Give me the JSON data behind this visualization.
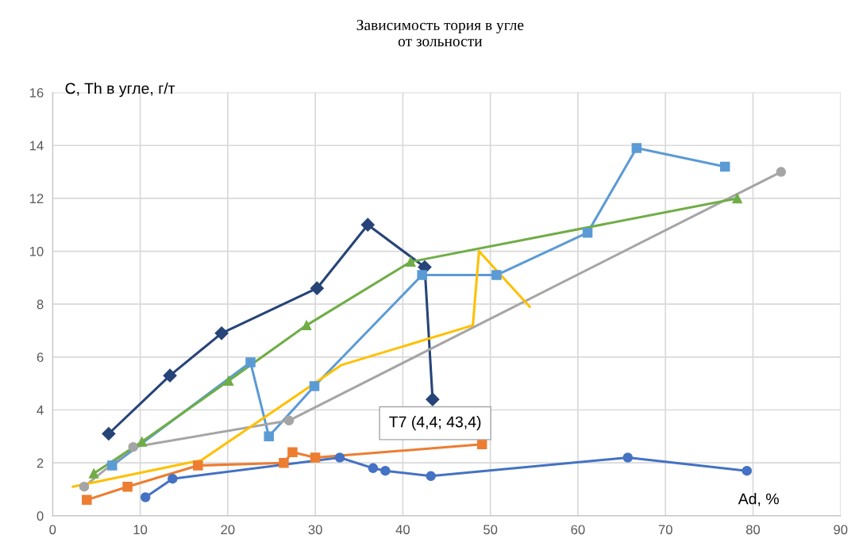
{
  "chart_data": {
    "type": "line",
    "title": "Зависимость тория в угле\nот зольности",
    "xlabel": "Ad, %",
    "ylabel": "С, Th в угле, г/т",
    "xlim": [
      0,
      90
    ],
    "xticks": [
      0,
      10,
      20,
      30,
      40,
      50,
      60,
      70,
      80,
      90
    ],
    "ylim": [
      0,
      16
    ],
    "yticks": [
      0,
      2,
      4,
      6,
      8,
      10,
      12,
      14,
      16
    ],
    "grid": true,
    "legend": false,
    "line_style": "solid",
    "annotations": [
      {
        "text": "T7 (4,4; 43,4)",
        "x": 43.4,
        "y": 4.4
      }
    ],
    "series": [
      {
        "color": "#264478",
        "marker": "diamond",
        "x": [
          6.4,
          13.4,
          19.3,
          30.2,
          36.0,
          42.5,
          43.4
        ],
        "values": [
          3.1,
          5.3,
          6.9,
          8.6,
          11.0,
          9.4,
          4.4
        ]
      },
      {
        "color": "#5b9bd5",
        "marker": "square",
        "x": [
          6.8,
          22.6,
          24.7,
          29.9,
          42.2,
          50.7,
          61.1,
          66.7,
          76.8
        ],
        "values": [
          1.9,
          5.8,
          3.0,
          4.9,
          9.1,
          9.1,
          10.7,
          13.9,
          13.2
        ]
      },
      {
        "color": "#a5a5a5",
        "marker": "circle",
        "x": [
          3.6,
          9.2,
          27.0,
          83.2
        ],
        "values": [
          1.1,
          2.6,
          3.6,
          13.0
        ]
      },
      {
        "color": "#70ad47",
        "marker": "triangle",
        "x": [
          4.7,
          10.2,
          20.1,
          29.0,
          40.9,
          78.2
        ],
        "values": [
          1.6,
          2.8,
          5.1,
          7.2,
          9.6,
          12.0
        ]
      },
      {
        "color": "#ffc000",
        "marker": "none",
        "x": [
          2.3,
          17.0,
          33.0,
          48.0,
          48.7,
          54.5
        ],
        "values": [
          1.1,
          2.1,
          5.7,
          7.2,
          10.0,
          7.9
        ]
      },
      {
        "color": "#ed7d31",
        "marker": "square",
        "x": [
          3.9,
          8.55,
          16.6,
          26.4,
          27.4,
          30.0,
          49.05
        ],
        "values": [
          0.6,
          1.1,
          1.9,
          2.0,
          2.4,
          2.2,
          2.7
        ]
      },
      {
        "color": "#4472c4",
        "marker": "circle",
        "x": [
          10.6,
          13.7,
          32.8,
          36.6,
          38.0,
          43.2,
          65.7,
          79.3
        ],
        "values": [
          0.7,
          1.4,
          2.2,
          1.8,
          1.7,
          1.5,
          2.2,
          1.7
        ]
      }
    ]
  }
}
